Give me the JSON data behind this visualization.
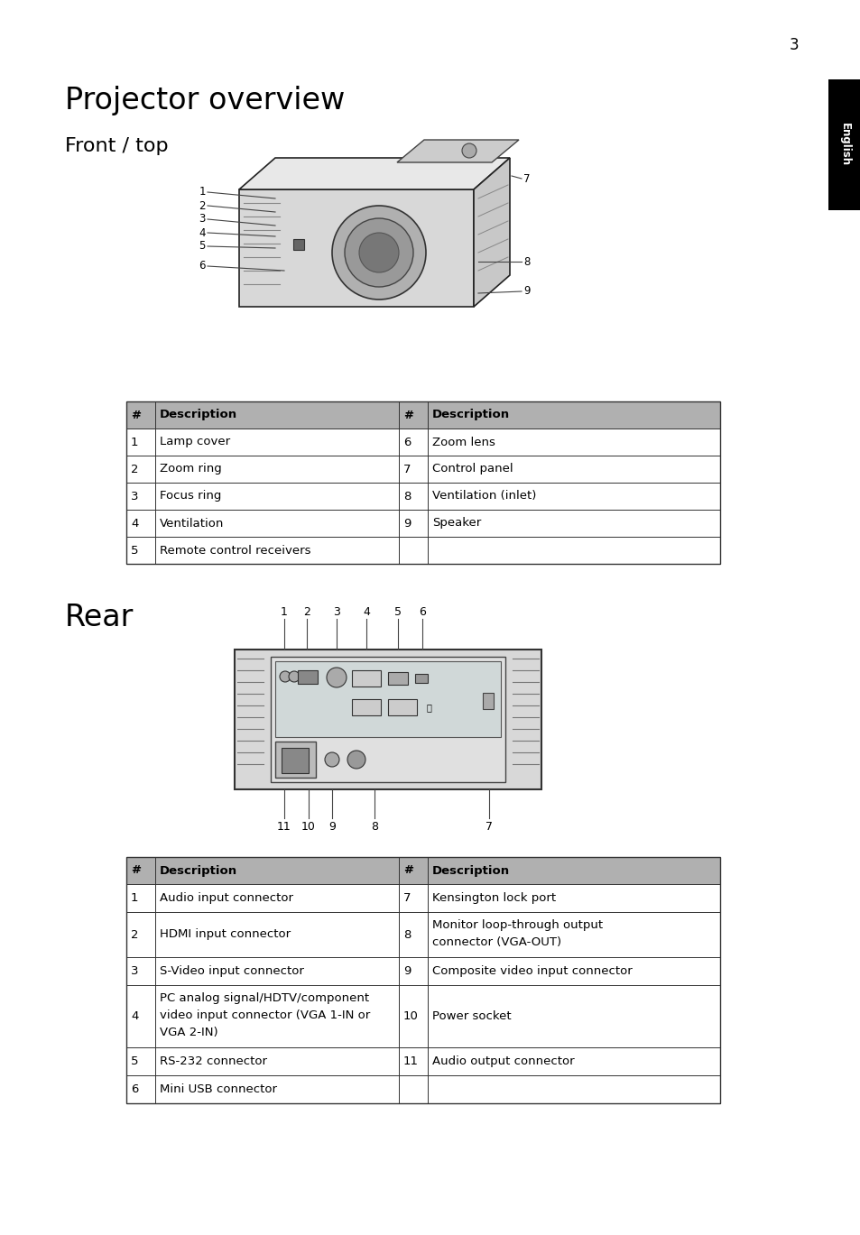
{
  "page_number": "3",
  "title": "Projector overview",
  "section1": "Front / top",
  "section2": "Rear",
  "bg_color": "#ffffff",
  "table_header_bg": "#b0b0b0",
  "english_tab_bg": "#000000",
  "english_tab_text": "#ffffff",
  "front_table": {
    "headers": [
      "#",
      "Description",
      "#",
      "Description"
    ],
    "rows": [
      [
        "1",
        "Lamp cover",
        "6",
        "Zoom lens"
      ],
      [
        "2",
        "Zoom ring",
        "7",
        "Control panel"
      ],
      [
        "3",
        "Focus ring",
        "8",
        "Ventilation (inlet)"
      ],
      [
        "4",
        "Ventilation",
        "9",
        "Speaker"
      ],
      [
        "5",
        "Remote control receivers",
        "",
        ""
      ]
    ]
  },
  "rear_table": {
    "headers": [
      "#",
      "Description",
      "#",
      "Description"
    ],
    "rows": [
      [
        "1",
        "Audio input connector",
        "7",
        "Kensington lock port"
      ],
      [
        "2",
        "HDMI input connector",
        "8",
        "Monitor loop-through output\nconnector (VGA-OUT)"
      ],
      [
        "3",
        "S-Video input connector",
        "9",
        "Composite video input connector"
      ],
      [
        "4",
        "PC analog signal/HDTV/component\nvideo input connector (VGA 1-IN or\nVGA 2-IN)",
        "10",
        "Power socket"
      ],
      [
        "5",
        "RS-232 connector",
        "11",
        "Audio output connector"
      ],
      [
        "6",
        "Mini USB connector",
        "",
        ""
      ]
    ]
  }
}
